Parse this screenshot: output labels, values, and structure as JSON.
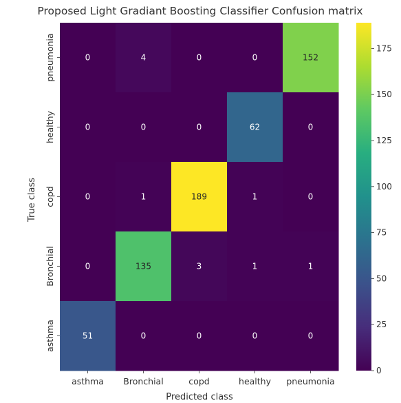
{
  "chart_data": {
    "type": "heatmap",
    "title": "Proposed Light Gradiant Boosting Classifier Confusion matrix",
    "xlabel": "Predicted class",
    "ylabel": "True class",
    "x_categories": [
      "asthma",
      "Bronchial",
      "copd",
      "healthy",
      "pneumonia"
    ],
    "y_categories": [
      "pneumonia",
      "healthy",
      "copd",
      "Bronchial",
      "asthma"
    ],
    "values": [
      [
        0,
        4,
        0,
        0,
        152
      ],
      [
        0,
        0,
        0,
        62,
        0
      ],
      [
        0,
        1,
        189,
        1,
        0
      ],
      [
        0,
        135,
        3,
        1,
        1
      ],
      [
        51,
        0,
        0,
        0,
        0
      ]
    ],
    "colormap": "viridis",
    "color_range": [
      0,
      189
    ],
    "colorbar_ticks": [
      0,
      25,
      50,
      75,
      100,
      125,
      150,
      175
    ],
    "annotations_shown": true
  }
}
